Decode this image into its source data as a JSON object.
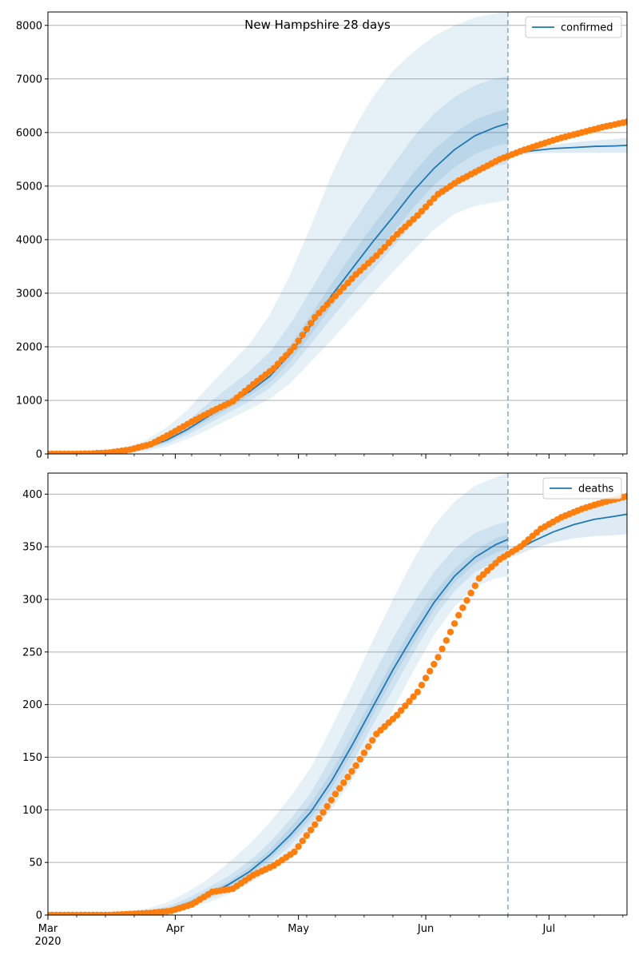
{
  "chart_data": [
    {
      "type": "line",
      "title": "New Hampshire 28 days",
      "legend": {
        "label": "confirmed",
        "placement": "top-right"
      },
      "ylim": [
        0,
        8250
      ],
      "yticks": [
        0,
        1000,
        2000,
        3000,
        4000,
        5000,
        6000,
        7000,
        8000
      ],
      "grid": "horizontal",
      "forecast_split": "2020-06-21",
      "model_fit": {
        "x": [
          "2020-03-15",
          "2020-03-20",
          "2020-03-25",
          "2020-03-30",
          "2020-04-04",
          "2020-04-09",
          "2020-04-14",
          "2020-04-19",
          "2020-04-24",
          "2020-04-29",
          "2020-05-04",
          "2020-05-09",
          "2020-05-14",
          "2020-05-19",
          "2020-05-24",
          "2020-05-29",
          "2020-06-03",
          "2020-06-08",
          "2020-06-13",
          "2020-06-18",
          "2020-06-21"
        ],
        "median": [
          15,
          40,
          120,
          260,
          460,
          700,
          930,
          1160,
          1450,
          1870,
          2400,
          2950,
          3450,
          3950,
          4420,
          4910,
          5330,
          5680,
          5940,
          6100,
          6170
        ],
        "bands": [
          {
            "lower": [
              0,
              10,
              50,
              140,
              280,
              450,
              640,
              830,
              1030,
              1320,
              1720,
              2120,
              2550,
              2980,
              3400,
              3800,
              4190,
              4480,
              4630,
              4700,
              4740
            ],
            "upper": [
              40,
              110,
              260,
              500,
              820,
              1250,
              1650,
              2050,
              2600,
              3350,
              4250,
              5200,
              6000,
              6650,
              7150,
              7500,
              7800,
              8000,
              8150,
              8220,
              8250
            ]
          },
          {
            "lower": [
              5,
              20,
              80,
              190,
              360,
              560,
              770,
              980,
              1230,
              1590,
              2050,
              2530,
              2990,
              3420,
              3860,
              4310,
              4700,
              4990,
              5220,
              5370,
              5420
            ],
            "upper": [
              25,
              70,
              180,
              360,
              620,
              940,
              1240,
              1540,
              1900,
              2420,
              3060,
              3700,
              4280,
              4850,
              5390,
              5920,
              6350,
              6660,
              6880,
              7010,
              7050
            ]
          },
          {
            "lower": [
              10,
              30,
              100,
              220,
              410,
              630,
              850,
              1080,
              1340,
              1730,
              2220,
              2750,
              3210,
              3680,
              4130,
              4600,
              5020,
              5350,
              5600,
              5750,
              5800
            ],
            "upper": [
              20,
              55,
              150,
              300,
              520,
              780,
              1020,
              1260,
              1580,
              2020,
              2590,
              3170,
              3720,
              4250,
              4740,
              5250,
              5680,
              6000,
              6240,
              6380,
              6440
            ]
          }
        ]
      },
      "forecast": {
        "x": [
          "2020-06-22",
          "2020-06-27",
          "2020-07-02",
          "2020-07-07",
          "2020-07-12",
          "2020-07-17",
          "2020-07-20"
        ],
        "median": [
          5600,
          5660,
          5700,
          5720,
          5740,
          5750,
          5760
        ],
        "lower": [
          5570,
          5610,
          5620,
          5620,
          5620,
          5620,
          5620
        ],
        "upper": [
          5640,
          5720,
          5770,
          5820,
          5850,
          5880,
          5900
        ]
      },
      "observed": {
        "x": [
          "2020-03-01",
          "2020-03-06",
          "2020-03-11",
          "2020-03-16",
          "2020-03-21",
          "2020-03-26",
          "2020-03-31",
          "2020-04-05",
          "2020-04-10",
          "2020-04-15",
          "2020-04-20",
          "2020-04-25",
          "2020-04-30",
          "2020-05-05",
          "2020-05-10",
          "2020-05-15",
          "2020-05-20",
          "2020-05-25",
          "2020-05-30",
          "2020-06-04",
          "2020-06-09",
          "2020-06-14",
          "2020-06-19",
          "2020-06-24",
          "2020-06-29",
          "2020-07-04",
          "2020-07-09",
          "2020-07-14",
          "2020-07-20"
        ],
        "values": [
          0,
          0,
          5,
          25,
          80,
          180,
          380,
          600,
          800,
          980,
          1300,
          1600,
          2000,
          2550,
          2950,
          3350,
          3700,
          4100,
          4450,
          4850,
          5100,
          5300,
          5500,
          5650,
          5780,
          5900,
          6000,
          6100,
          6200
        ]
      }
    },
    {
      "type": "line",
      "title": "",
      "legend": {
        "label": "deaths",
        "placement": "top-right"
      },
      "ylim": [
        0,
        420
      ],
      "yticks": [
        0,
        50,
        100,
        150,
        200,
        250,
        300,
        350,
        400
      ],
      "grid": "horizontal",
      "forecast_split": "2020-06-21",
      "model_fit": {
        "x": [
          "2020-03-15",
          "2020-03-20",
          "2020-03-25",
          "2020-03-30",
          "2020-04-04",
          "2020-04-09",
          "2020-04-14",
          "2020-04-19",
          "2020-04-24",
          "2020-04-29",
          "2020-05-04",
          "2020-05-09",
          "2020-05-14",
          "2020-05-19",
          "2020-05-24",
          "2020-05-29",
          "2020-06-03",
          "2020-06-08",
          "2020-06-13",
          "2020-06-18",
          "2020-06-21"
        ],
        "median": [
          0.5,
          1,
          2,
          5,
          11,
          19,
          29,
          41,
          57,
          76,
          98,
          127,
          161,
          197,
          233,
          266,
          297,
          322,
          340,
          352,
          357
        ],
        "bands": [
          {
            "lower": [
              0,
              0,
              0.5,
              2,
              6,
              12,
              20,
              30,
              42,
              58,
              76,
              100,
              128,
              160,
              195,
              232,
              266,
              293,
              312,
              320,
              322
            ],
            "upper": [
              1.5,
              3,
              6,
              12,
              22,
              34,
              50,
              67,
              88,
              112,
              140,
              178,
              218,
              260,
              300,
              338,
              370,
              393,
              408,
              416,
              420
            ]
          },
          {
            "lower": [
              0.2,
              0.5,
              1,
              3,
              8,
              15,
              24,
              35,
              49,
              66,
              87,
              112,
              144,
              180,
              214,
              249,
              282,
              308,
              326,
              336,
              339
            ],
            "upper": [
              1,
              2,
              4,
              8,
              16,
              26,
              37,
              51,
              69,
              91,
              116,
              150,
              188,
              226,
              263,
              296,
              326,
              348,
              363,
              371,
              374
            ]
          },
          {
            "lower": [
              0.3,
              0.8,
              1.5,
              4,
              9,
              17,
              27,
              38,
              53,
              71,
              92,
              120,
              153,
              189,
              225,
              258,
              290,
              316,
              334,
              344,
              348
            ],
            "upper": [
              0.8,
              1.5,
              3,
              6,
              13,
              22,
              32,
              45,
              62,
              83,
              106,
              136,
              170,
              206,
              242,
              276,
              306,
              329,
              346,
              358,
              362
            ]
          }
        ]
      },
      "forecast": {
        "x": [
          "2020-06-22",
          "2020-06-27",
          "2020-07-02",
          "2020-07-07",
          "2020-07-12",
          "2020-07-17",
          "2020-07-20"
        ],
        "median": [
          344,
          355,
          364,
          371,
          376,
          379,
          381
        ],
        "lower": [
          340,
          348,
          354,
          358,
          360,
          361,
          362
        ],
        "upper": [
          349,
          362,
          374,
          384,
          391,
          396,
          399
        ]
      },
      "observed": {
        "x": [
          "2020-03-01",
          "2020-03-06",
          "2020-03-11",
          "2020-03-16",
          "2020-03-21",
          "2020-03-26",
          "2020-03-31",
          "2020-04-05",
          "2020-04-10",
          "2020-04-15",
          "2020-04-20",
          "2020-04-25",
          "2020-04-30",
          "2020-05-05",
          "2020-05-10",
          "2020-05-15",
          "2020-05-20",
          "2020-05-25",
          "2020-05-30",
          "2020-06-04",
          "2020-06-09",
          "2020-06-14",
          "2020-06-19",
          "2020-06-24",
          "2020-06-29",
          "2020-07-04",
          "2020-07-09",
          "2020-07-14",
          "2020-07-20"
        ],
        "values": [
          0,
          0,
          0,
          0,
          1,
          2,
          4,
          10,
          22,
          25,
          38,
          47,
          60,
          86,
          115,
          142,
          172,
          190,
          212,
          245,
          285,
          320,
          338,
          350,
          367,
          378,
          386,
          392,
          398
        ]
      }
    }
  ],
  "x_axis": {
    "range": [
      "2020-03-01",
      "2020-07-20"
    ],
    "major_ticks": [
      {
        "date": "2020-03-01",
        "label": "Mar",
        "sublabel": "2020"
      },
      {
        "date": "2020-04-01",
        "label": "Apr"
      },
      {
        "date": "2020-05-01",
        "label": "May"
      },
      {
        "date": "2020-06-01",
        "label": "Jun"
      },
      {
        "date": "2020-07-01",
        "label": "Jul"
      }
    ],
    "minor_ticks": [
      "2020-03-08",
      "2020-03-15",
      "2020-03-22",
      "2020-03-29",
      "2020-04-05",
      "2020-04-12",
      "2020-04-19",
      "2020-04-26",
      "2020-05-03",
      "2020-05-10",
      "2020-05-17",
      "2020-05-24",
      "2020-05-31",
      "2020-06-07",
      "2020-06-14",
      "2020-06-21",
      "2020-06-28",
      "2020-07-05",
      "2020-07-12",
      "2020-07-19"
    ]
  },
  "colors": {
    "line": "#1f77b4",
    "band": "#1f77b4",
    "observed": "#ff7f0e",
    "grid": "#b0b0b0",
    "axes": "#000000",
    "split": "#1f77b4"
  }
}
